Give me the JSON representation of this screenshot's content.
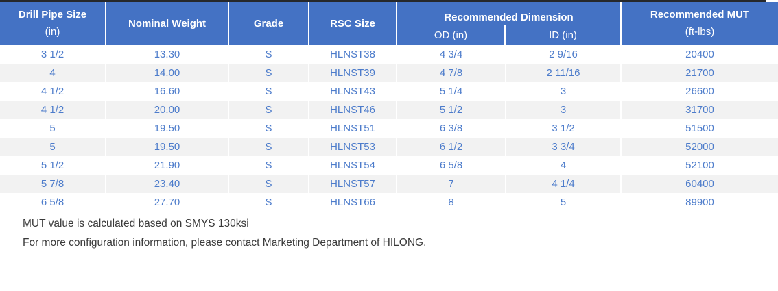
{
  "colors": {
    "header_background": "#4472c4",
    "data_text": "#4d7ccb",
    "stripe": "#f2f2f2",
    "top_rule": "#26282b",
    "note_text": "#3a3a3a"
  },
  "table": {
    "header": {
      "drill_pipe_size_title": "Drill Pipe Size",
      "drill_pipe_size_unit": "(in)",
      "nominal_weight": "Nominal Weight",
      "grade": "Grade",
      "rsc_size": "RSC Size",
      "recommended_dimension": "Recommended Dimension",
      "od": "OD (in)",
      "id": "ID (in)",
      "recommended_mut_title": "Recommended MUT",
      "recommended_mut_unit": "(ft-lbs)"
    },
    "rows": [
      [
        "3 1/2",
        "13.30",
        "S",
        "HLNST38",
        "4 3/4",
        "2 9/16",
        "20400"
      ],
      [
        "4",
        "14.00",
        "S",
        "HLNST39",
        "4 7/8",
        "2 11/16",
        "21700"
      ],
      [
        "4 1/2",
        "16.60",
        "S",
        "HLNST43",
        "5 1/4",
        "3",
        "26600"
      ],
      [
        "4 1/2",
        "20.00",
        "S",
        "HLNST46",
        "5 1/2",
        "3",
        "31700"
      ],
      [
        "5",
        "19.50",
        "S",
        "HLNST51",
        "6 3/8",
        "3 1/2",
        "51500"
      ],
      [
        "5",
        "19.50",
        "S",
        "HLNST53",
        "6 1/2",
        "3 3/4",
        "52000"
      ],
      [
        "5 1/2",
        "21.90",
        "S",
        "HLNST54",
        "6 5/8",
        "4",
        "52100"
      ],
      [
        "5 7/8",
        "23.40",
        "S",
        "HLNST57",
        "7",
        "4 1/4",
        "60400"
      ],
      [
        "6 5/8",
        "27.70",
        "S",
        "HLNST66",
        "8",
        "5",
        "89900"
      ]
    ]
  },
  "notes": {
    "line1": "MUT value is calculated based on SMYS 130ksi",
    "line2": "For more configuration information, please contact Marketing Department of HILONG."
  }
}
